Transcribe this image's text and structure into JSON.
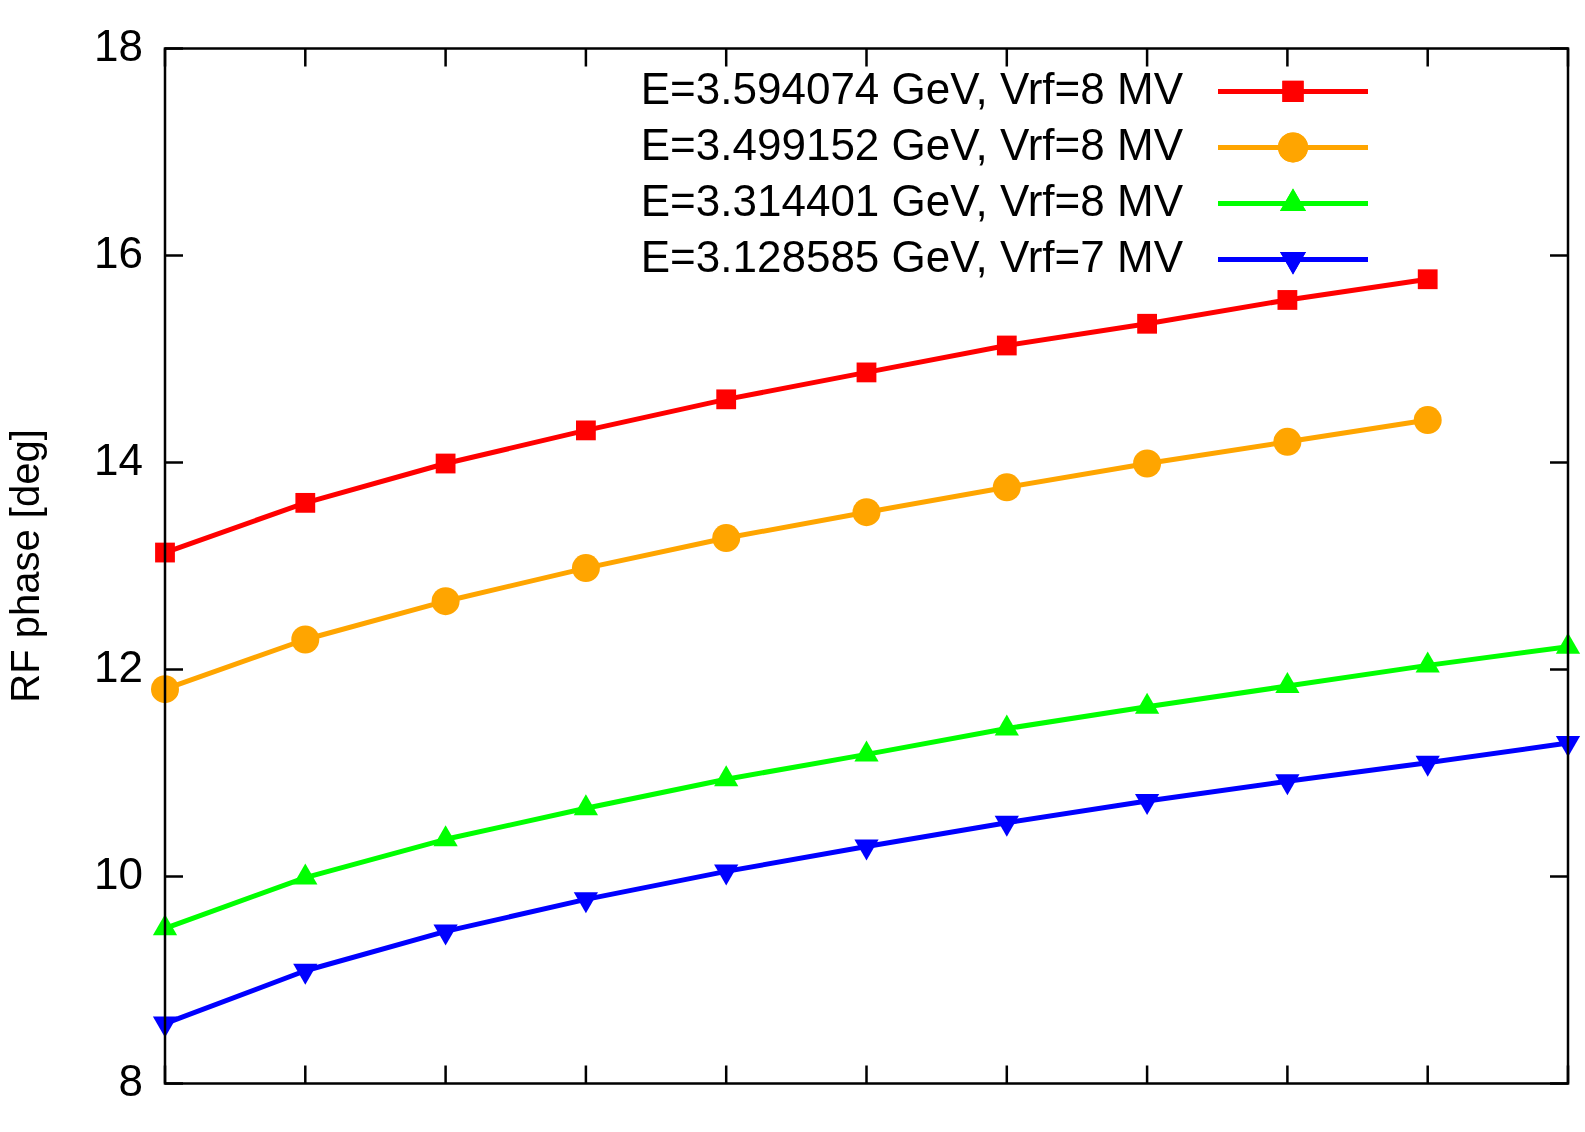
{
  "chart_data": {
    "type": "line",
    "ylabel": "RF phase [deg]",
    "categories": [
      null,
      null,
      null,
      null,
      null,
      null,
      null,
      null,
      null,
      null,
      null
    ],
    "ylim": [
      8,
      18
    ],
    "yticks": [
      8,
      10,
      12,
      14,
      16,
      18
    ],
    "tick_labels": "y",
    "grid": false,
    "legend": "top right",
    "line_style": "solid",
    "series": [
      {
        "name": "E=3.594074 GeV, Vrf=8 MV",
        "color": "#ff0000",
        "marker": "square",
        "values": [
          13.13,
          13.61,
          13.99,
          14.31,
          14.61,
          14.87,
          15.13,
          15.34,
          15.57,
          15.77,
          null
        ]
      },
      {
        "name": "E=3.499152 GeV, Vrf=8 MV",
        "color": "#ffa500",
        "marker": "circle",
        "values": [
          11.81,
          12.29,
          12.66,
          12.98,
          13.27,
          13.52,
          13.76,
          13.99,
          14.2,
          14.41,
          null
        ]
      },
      {
        "name": "E=3.314401 GeV, Vrf=8 MV",
        "color": "#00ff00",
        "marker": "triangle",
        "values": [
          9.5,
          9.99,
          10.36,
          10.66,
          10.94,
          11.18,
          11.43,
          11.64,
          11.84,
          12.04,
          12.22
        ]
      },
      {
        "name": "E=3.128585 GeV, Vrf=7 MV",
        "color": "#0000ff",
        "marker": "triangle-down",
        "values": [
          8.58,
          9.09,
          9.47,
          9.78,
          10.05,
          10.29,
          10.52,
          10.73,
          10.92,
          11.1,
          11.29
        ]
      }
    ]
  }
}
